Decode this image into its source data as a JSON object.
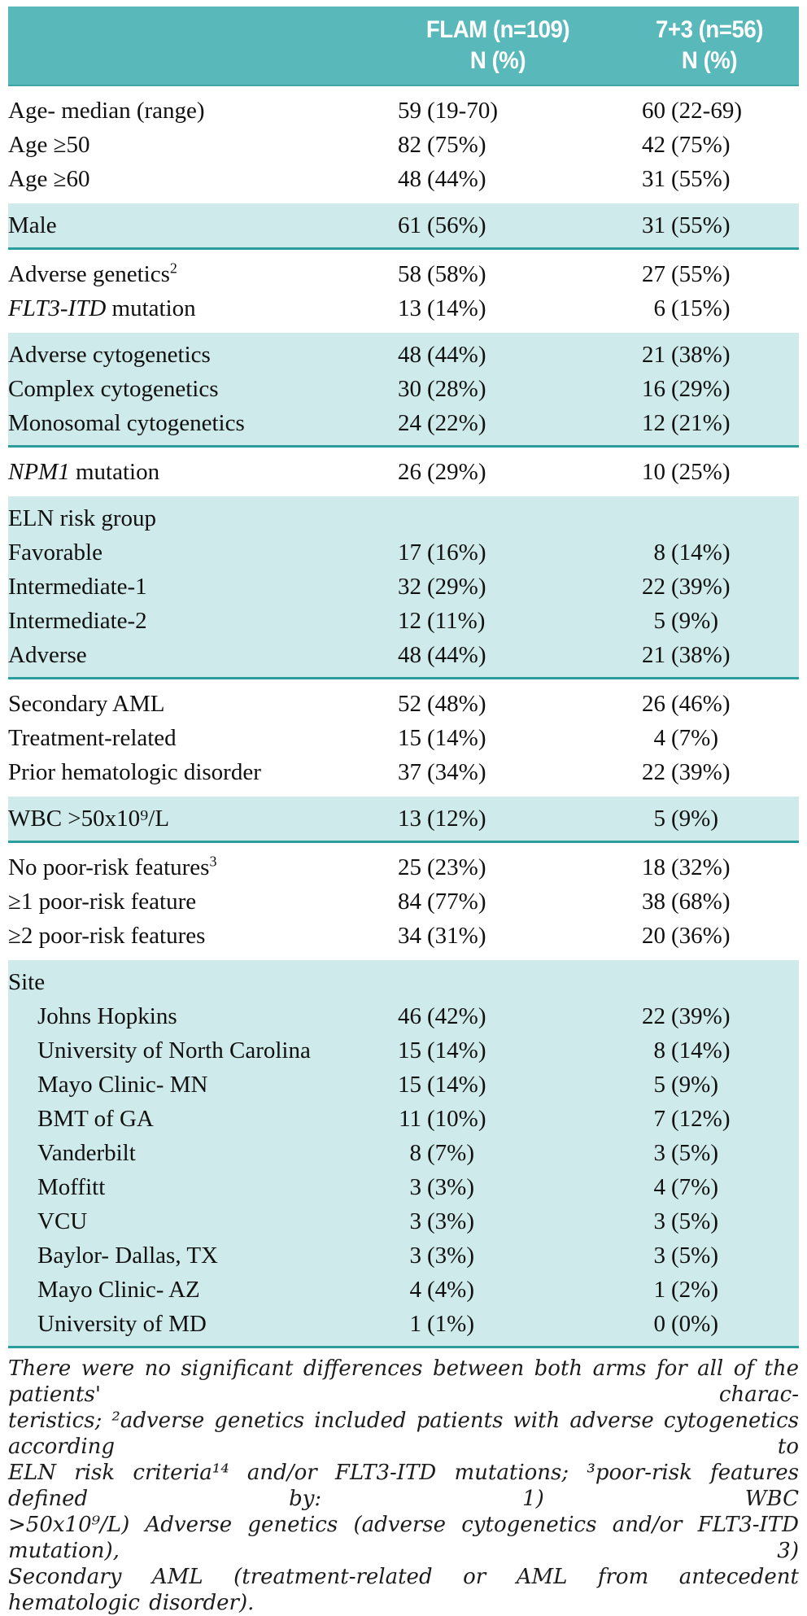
{
  "colors": {
    "header_teal": "#59b8b9",
    "band_teal": "#cfeaea",
    "rule_teal": "#2d9c9d",
    "text": "#101010"
  },
  "table": {
    "columns": {
      "flam": {
        "line1": "FLAM (n=109)",
        "line2": "N (%)"
      },
      "arm73": {
        "line1": "7+3 (n=56)",
        "line2": "N (%)"
      }
    },
    "sections": [
      {
        "bg": "white",
        "rule": false,
        "rows": [
          {
            "label": "Age- median (range)",
            "v1": {
              "n": "59",
              "p": "(19-70)"
            },
            "v2": {
              "n": "60",
              "p": "(22-69)"
            }
          },
          {
            "label": "Age ≥50",
            "v1": {
              "n": "82",
              "p": "(75%)"
            },
            "v2": {
              "n": "42",
              "p": "(75%)"
            }
          },
          {
            "label": "Age ≥60",
            "v1": {
              "n": "48",
              "p": "(44%)"
            },
            "v2": {
              "n": "31",
              "p": "(55%)"
            }
          }
        ]
      },
      {
        "bg": "teal",
        "rule": true,
        "rows": [
          {
            "label": "Male",
            "v1": {
              "n": "61",
              "p": "(56%)"
            },
            "v2": {
              "n": "31",
              "p": "(55%)"
            }
          }
        ]
      },
      {
        "bg": "white",
        "rule": false,
        "rows": [
          {
            "label": "Adverse genetics",
            "sup": "2",
            "v1": {
              "n": "58",
              "p": "(58%)"
            },
            "v2": {
              "n": "27",
              "p": "(55%)"
            }
          },
          {
            "italic": "FLT3-ITD",
            "label": " mutation",
            "v1": {
              "n": "13",
              "p": "(14%)"
            },
            "v2": {
              "n": "6",
              "p": "(15%)"
            }
          }
        ]
      },
      {
        "bg": "teal",
        "rule": true,
        "rows": [
          {
            "label": "Adverse cytogenetics",
            "v1": {
              "n": "48",
              "p": "(44%)"
            },
            "v2": {
              "n": "21",
              "p": "(38%)"
            }
          },
          {
            "label": "Complex cytogenetics",
            "v1": {
              "n": "30",
              "p": "(28%)"
            },
            "v2": {
              "n": "16",
              "p": "(29%)"
            }
          },
          {
            "label": "Monosomal cytogenetics",
            "v1": {
              "n": "24",
              "p": "(22%)"
            },
            "v2": {
              "n": "12",
              "p": "(21%)"
            }
          }
        ]
      },
      {
        "bg": "white",
        "rule": false,
        "rows": [
          {
            "italic": "NPM1",
            "label": " mutation",
            "v1": {
              "n": "26",
              "p": "(29%)"
            },
            "v2": {
              "n": "10",
              "p": "(25%)"
            }
          }
        ]
      },
      {
        "bg": "teal",
        "rule": true,
        "rows": [
          {
            "label": "ELN risk group"
          },
          {
            "label": "Favorable",
            "v1": {
              "n": "17",
              "p": "(16%)"
            },
            "v2": {
              "n": "8",
              "p": "(14%)"
            }
          },
          {
            "label": "Intermediate-1",
            "v1": {
              "n": "32",
              "p": "(29%)"
            },
            "v2": {
              "n": "22",
              "p": "(39%)"
            }
          },
          {
            "label": "Intermediate-2",
            "v1": {
              "n": "12",
              "p": "(11%)"
            },
            "v2": {
              "n": "5",
              "p": "(9%)"
            }
          },
          {
            "label": "Adverse",
            "v1": {
              "n": "48",
              "p": "(44%)"
            },
            "v2": {
              "n": "21",
              "p": "(38%)"
            }
          }
        ]
      },
      {
        "bg": "white",
        "rule": false,
        "rows": [
          {
            "label": "Secondary AML",
            "v1": {
              "n": "52",
              "p": "(48%)"
            },
            "v2": {
              "n": "26",
              "p": "(46%)"
            }
          },
          {
            "label": "Treatment-related",
            "v1": {
              "n": "15",
              "p": "(14%)"
            },
            "v2": {
              "n": "4",
              "p": "(7%)"
            }
          },
          {
            "label": "Prior hematologic disorder",
            "v1": {
              "n": "37",
              "p": "(34%)"
            },
            "v2": {
              "n": "22",
              "p": "(39%)"
            }
          }
        ]
      },
      {
        "bg": "teal",
        "rule": true,
        "rows": [
          {
            "label": "WBC >50x10⁹/L",
            "v1": {
              "n": "13",
              "p": "(12%)"
            },
            "v2": {
              "n": "5",
              "p": "(9%)"
            }
          }
        ]
      },
      {
        "bg": "white",
        "rule": false,
        "rows": [
          {
            "label": "No poor-risk features",
            "sup": "3",
            "v1": {
              "n": "25",
              "p": "(23%)"
            },
            "v2": {
              "n": "18",
              "p": "(32%)"
            }
          },
          {
            "label": "≥1 poor-risk feature",
            "v1": {
              "n": "84",
              "p": "(77%)"
            },
            "v2": {
              "n": "38",
              "p": "(68%)"
            }
          },
          {
            "label": "≥2 poor-risk features",
            "v1": {
              "n": "34",
              "p": "(31%)"
            },
            "v2": {
              "n": "20",
              "p": "(36%)"
            }
          }
        ]
      },
      {
        "bg": "teal",
        "rule": true,
        "rows": [
          {
            "label": "Site"
          },
          {
            "label": "Johns Hopkins",
            "indent": true,
            "v1": {
              "n": "46",
              "p": "(42%)"
            },
            "v2": {
              "n": "22",
              "p": "(39%)"
            }
          },
          {
            "label": "University of North Carolina",
            "indent": true,
            "v1": {
              "n": "15",
              "p": "(14%)"
            },
            "v2": {
              "n": "8",
              "p": "(14%)"
            }
          },
          {
            "label": "Mayo Clinic- MN",
            "indent": true,
            "v1": {
              "n": "15",
              "p": "(14%)"
            },
            "v2": {
              "n": "5",
              "p": "(9%)"
            }
          },
          {
            "label": "BMT of GA",
            "indent": true,
            "v1": {
              "n": "11",
              "p": "(10%)"
            },
            "v2": {
              "n": "7",
              "p": "(12%)"
            }
          },
          {
            "label": "Vanderbilt",
            "indent": true,
            "v1": {
              "n": "8",
              "p": "(7%)"
            },
            "v2": {
              "n": "3",
              "p": "(5%)"
            }
          },
          {
            "label": "Moffitt",
            "indent": true,
            "v1": {
              "n": "3",
              "p": "(3%)"
            },
            "v2": {
              "n": "4",
              "p": "(7%)"
            }
          },
          {
            "label": "VCU",
            "indent": true,
            "v1": {
              "n": "3",
              "p": "(3%)"
            },
            "v2": {
              "n": "3",
              "p": "(5%)"
            }
          },
          {
            "label": "Baylor- Dallas, TX",
            "indent": true,
            "v1": {
              "n": "3",
              "p": "(3%)"
            },
            "v2": {
              "n": "3",
              "p": "(5%)"
            }
          },
          {
            "label": "Mayo Clinic- AZ",
            "indent": true,
            "v1": {
              "n": "4",
              "p": "(4%)"
            },
            "v2": {
              "n": "1",
              "p": "(2%)"
            }
          },
          {
            "label": "University of MD",
            "indent": true,
            "v1": {
              "n": "1",
              "p": "(1%)"
            },
            "v2": {
              "n": "0",
              "p": "(0%)"
            }
          }
        ]
      }
    ]
  },
  "footnote": {
    "lines": [
      "There were no significant differences between both arms for all of the patients' charac-",
      "teristics; ²adverse genetics included patients with adverse cytogenetics according to",
      "ELN risk criteria¹⁴ and/or FLT3-ITD mutations; ³poor-risk features defined by: 1) WBC",
      ">50x10⁹/L) Adverse genetics (adverse cytogenetics and/or FLT3-ITD mutation), 3)",
      "Secondary AML (treatment-related or AML from antecedent hematologic disorder)."
    ]
  }
}
